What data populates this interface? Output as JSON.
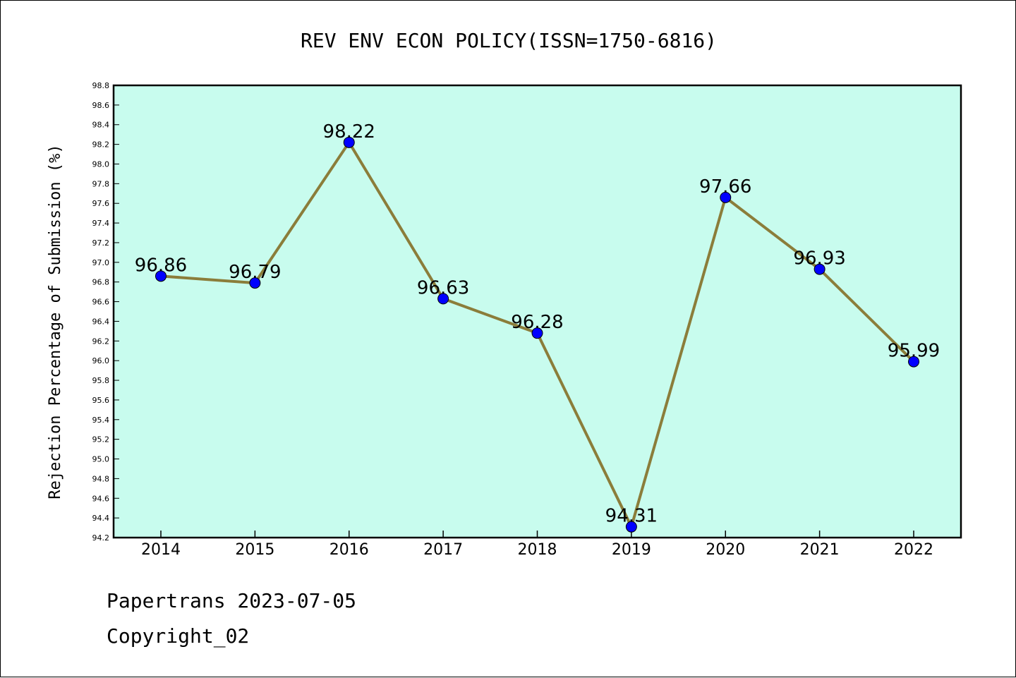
{
  "footer": {
    "line1": "Papertrans 2023-07-05",
    "line2": "Copyright_02"
  },
  "chart_data": {
    "type": "line",
    "title": "REV ENV ECON POLICY(ISSN=1750-6816)",
    "ylabel": "Rejection Percentage of Submission (%)",
    "xlabel": "",
    "categories": [
      "2014",
      "2015",
      "2016",
      "2017",
      "2018",
      "2019",
      "2020",
      "2021",
      "2022"
    ],
    "values": [
      96.86,
      96.79,
      98.22,
      96.63,
      96.28,
      94.31,
      97.66,
      96.93,
      95.99
    ],
    "data_labels": [
      "96.86",
      "96.79",
      "98.22",
      "96.63",
      "96.28",
      "94.31",
      "97.66",
      "96.93",
      "95.99"
    ],
    "ylim": [
      94.2,
      98.8
    ],
    "yticks": [
      "94.2",
      "94.4",
      "94.6",
      "94.8",
      "95.0",
      "95.2",
      "95.4",
      "95.6",
      "95.8",
      "96.0",
      "96.2",
      "96.4",
      "96.6",
      "96.8",
      "97.0",
      "97.2",
      "97.4",
      "97.6",
      "97.8",
      "98.0",
      "98.2",
      "98.4",
      "98.6",
      "98.8"
    ],
    "grid": false,
    "colors": {
      "plot_background": "#c8fcee",
      "line": "#8b7d3a",
      "marker": "#0000ff"
    }
  }
}
